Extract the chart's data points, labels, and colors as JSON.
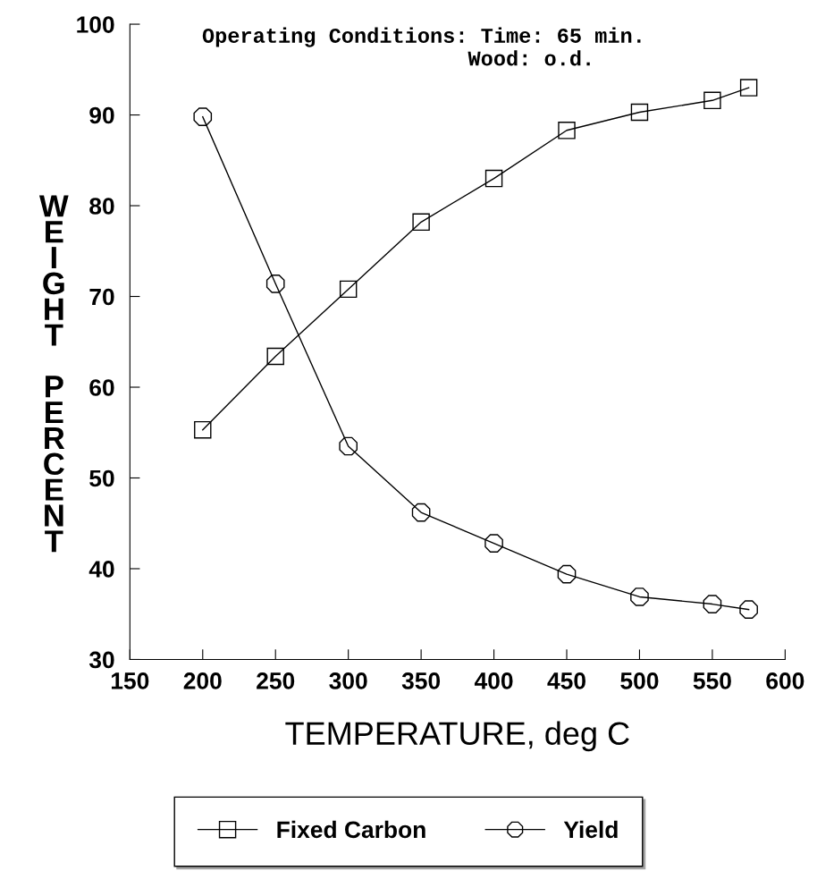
{
  "chart_data": {
    "type": "line",
    "xlabel": "TEMPERATURE, deg C",
    "ylabel": "WEIGHT PERCENT",
    "annotations": [
      "Operating Conditions: Time: 65 min.\n                     Wood: o.d."
    ],
    "x": [
      200,
      250,
      300,
      350,
      400,
      450,
      500,
      550,
      575
    ],
    "series": [
      {
        "name": "Fixed Carbon",
        "color": "#000000",
        "marker": "square",
        "values": [
          55.3,
          63.4,
          70.8,
          78.2,
          83.0,
          88.3,
          90.3,
          91.6,
          93.0
        ]
      },
      {
        "name": "Yield",
        "color": "#000000",
        "marker": "circle",
        "values": [
          89.8,
          71.4,
          53.5,
          46.2,
          42.8,
          39.4,
          36.9,
          36.1,
          35.5
        ]
      }
    ],
    "xlim": [
      150,
      600
    ],
    "xticks": [
      150,
      200,
      250,
      300,
      350,
      400,
      450,
      500,
      550,
      600
    ],
    "ylim": [
      30,
      100
    ],
    "yticks": [
      30,
      40,
      50,
      60,
      70,
      80,
      90,
      100
    ],
    "grid": false,
    "legend": "bottom",
    "line_style": "solid"
  }
}
